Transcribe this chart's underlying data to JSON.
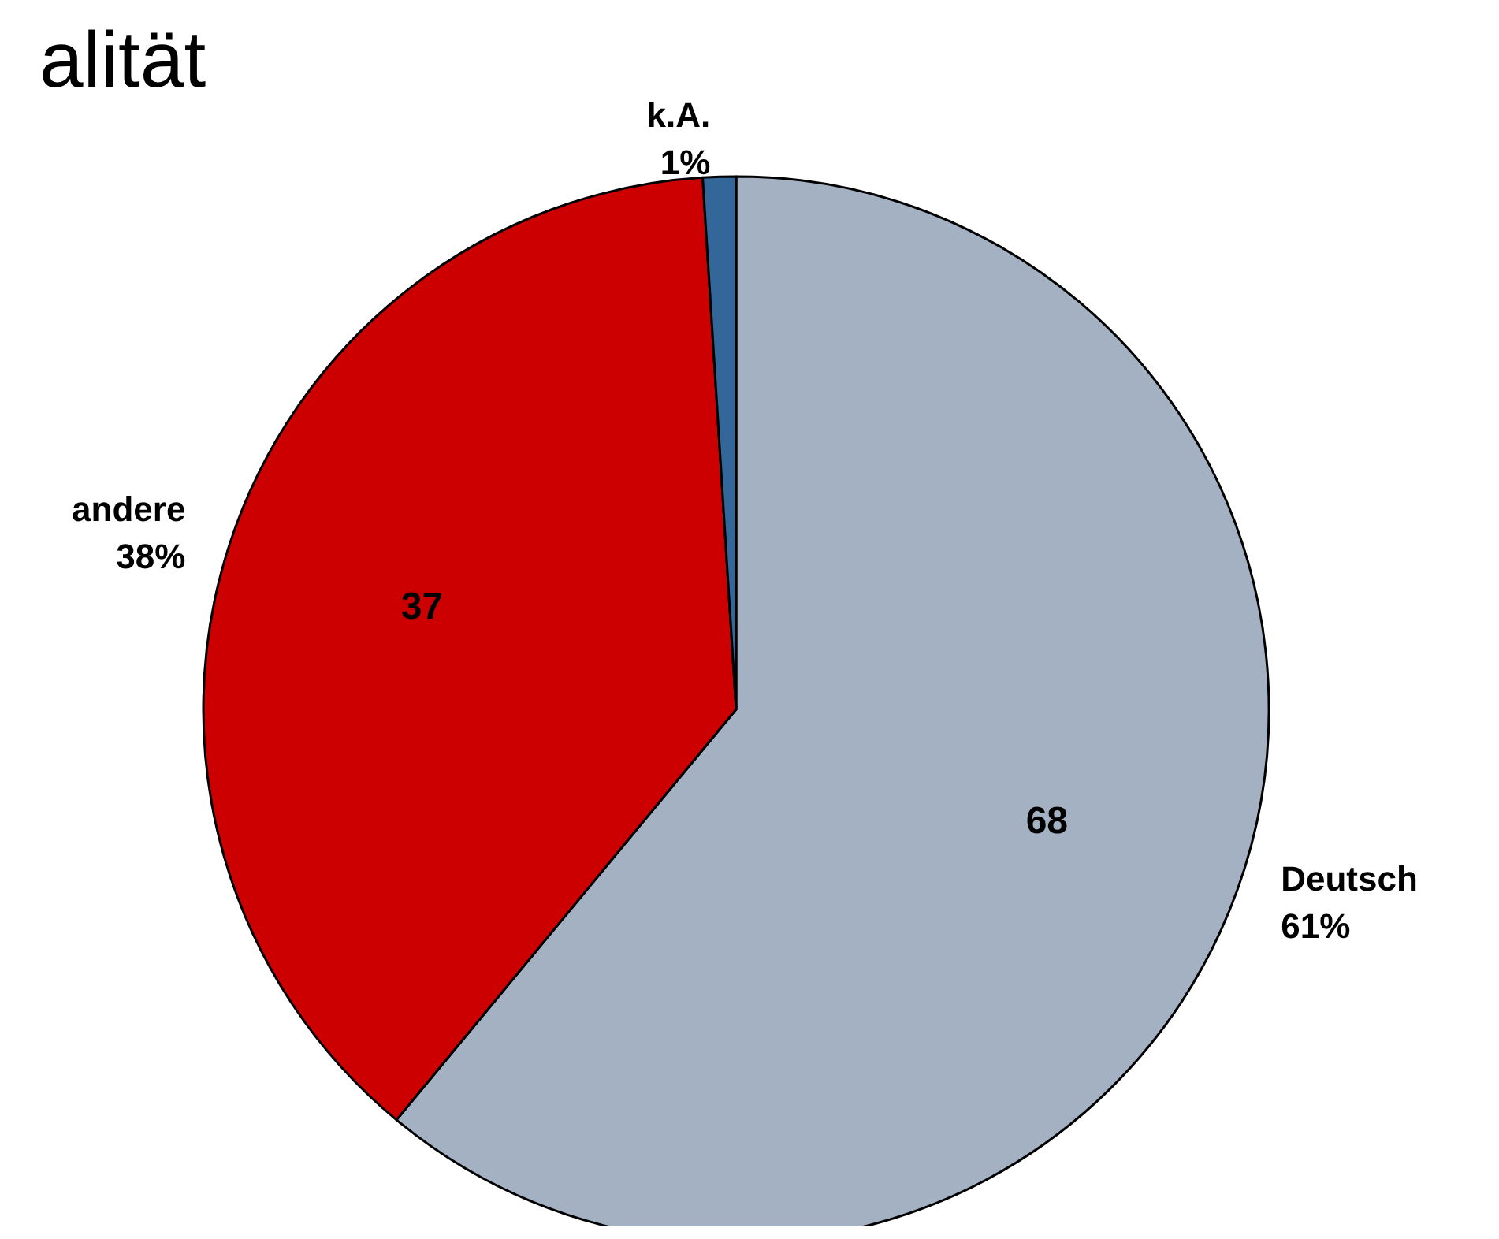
{
  "chart_data": {
    "type": "pie",
    "title": "alität",
    "categories": [
      "Deutsch",
      "andere",
      "k.A."
    ],
    "values": [
      61,
      38,
      1
    ],
    "value_labels": [
      "61%",
      "38%",
      "1%"
    ],
    "colors": [
      "#a3b1c2",
      "#cc0000",
      "#336699"
    ],
    "annotations": [
      {
        "text": "68",
        "x": "Deutsch"
      },
      {
        "text": "37",
        "x": "andere"
      }
    ]
  }
}
